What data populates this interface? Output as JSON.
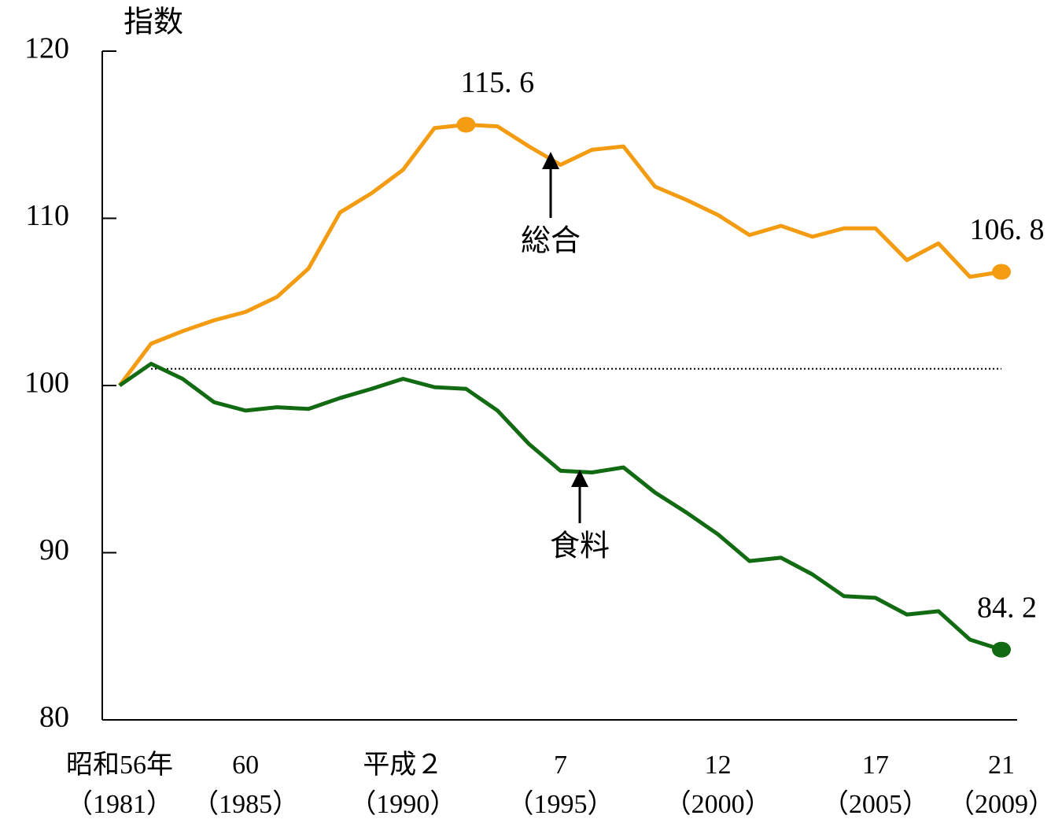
{
  "chart_data": {
    "type": "line",
    "y_axis_label": "指数",
    "categories": [
      "昭和56年\n（1981）",
      null,
      null,
      null,
      "60\n（1985）",
      null,
      null,
      null,
      null,
      "平成２\n（1990）",
      null,
      null,
      null,
      null,
      "7\n（1995）",
      null,
      null,
      null,
      null,
      "12\n（2000）",
      null,
      null,
      null,
      null,
      "17\n（2005）",
      null,
      null,
      null,
      "21\n（2009）"
    ],
    "series": [
      {
        "name": "総合",
        "color": "#f39c12",
        "values": [
          100,
          102.5,
          103.25,
          103.9,
          104.4,
          105.3,
          107.0,
          110.35,
          111.5,
          112.9,
          115.4,
          115.6,
          115.5,
          114.3,
          113.2,
          114.1,
          114.3,
          111.9,
          111.1,
          110.2,
          109.0,
          109.55,
          108.9,
          109.4,
          109.4,
          107.5,
          108.5,
          106.5,
          106.8
        ],
        "value_labels": [
          null,
          null,
          null,
          null,
          null,
          null,
          null,
          null,
          null,
          null,
          null,
          "115. 6",
          null,
          null,
          null,
          null,
          null,
          null,
          null,
          null,
          null,
          null,
          null,
          null,
          null,
          null,
          null,
          null,
          "106. 8"
        ]
      },
      {
        "name": "食料",
        "color": "#126b12",
        "values": [
          100,
          101.3,
          100.4,
          99.0,
          98.5,
          98.7,
          98.6,
          99.25,
          99.8,
          100.4,
          99.9,
          99.8,
          98.5,
          96.5,
          94.9,
          94.8,
          95.1,
          93.6,
          92.4,
          91.1,
          89.5,
          89.7,
          88.7,
          87.4,
          87.3,
          86.3,
          86.5,
          84.8,
          84.2
        ],
        "value_labels": [
          null,
          null,
          null,
          null,
          null,
          null,
          null,
          null,
          null,
          null,
          null,
          null,
          null,
          null,
          null,
          null,
          null,
          null,
          null,
          null,
          null,
          null,
          null,
          null,
          null,
          null,
          null,
          null,
          "84. 2"
        ]
      }
    ],
    "reference_line": 101,
    "ylim": [
      80,
      120
    ],
    "yticks": [
      80,
      90,
      100,
      110,
      120
    ]
  }
}
